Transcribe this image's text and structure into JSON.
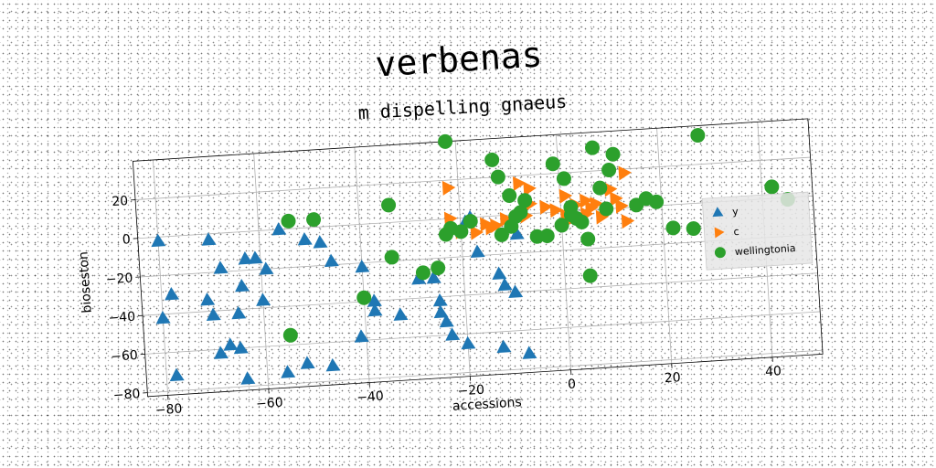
{
  "chart_data": {
    "type": "scatter",
    "title": "verbenas",
    "subtitle": "m dispelling gnaeus",
    "xlabel": "accessions",
    "ylabel": "bioseston",
    "xlim": [
      -84,
      50
    ],
    "ylim": [
      -82,
      40
    ],
    "xticks": [
      -80,
      -60,
      -40,
      -20,
      0,
      20,
      40
    ],
    "yticks": [
      20,
      0,
      -20,
      -40,
      -60,
      -80
    ],
    "grid": true,
    "legend_position": "center-right",
    "series": [
      {
        "name": "y",
        "marker": "triangle-up",
        "color": "#1f77b4",
        "points": [
          [
            -80,
            -2
          ],
          [
            -70,
            -3
          ],
          [
            -68,
            -18
          ],
          [
            -63,
            -14
          ],
          [
            -61,
            -14
          ],
          [
            -59,
            -20
          ],
          [
            -56,
            0
          ],
          [
            -51,
            -6
          ],
          [
            -48,
            -8
          ],
          [
            -46,
            -18
          ],
          [
            -78,
            -30
          ],
          [
            -80,
            -42
          ],
          [
            -71,
            -34
          ],
          [
            -70,
            -42
          ],
          [
            -65,
            -42
          ],
          [
            -64,
            -28
          ],
          [
            -60,
            -36
          ],
          [
            -40,
            -22
          ],
          [
            -38,
            -40
          ],
          [
            -38,
            -45
          ],
          [
            -33,
            -48
          ],
          [
            -29,
            -30
          ],
          [
            -26,
            -30
          ],
          [
            -25,
            -42
          ],
          [
            -25,
            -48
          ],
          [
            -24,
            -53
          ],
          [
            -23,
            -60
          ],
          [
            -20,
            -65
          ],
          [
            -19,
            -2
          ],
          [
            -18,
            0
          ],
          [
            -17,
            -18
          ],
          [
            -13,
            -30
          ],
          [
            -12,
            -36
          ],
          [
            -10,
            -40
          ],
          [
            -9,
            -10
          ],
          [
            -8,
            -72
          ],
          [
            -13,
            -68
          ],
          [
            -41,
            -58
          ],
          [
            -47,
            -72
          ],
          [
            -52,
            -70
          ],
          [
            -56,
            -74
          ],
          [
            -65,
            -60
          ],
          [
            -67,
            -58
          ],
          [
            -69,
            -62
          ],
          [
            -78,
            -72
          ],
          [
            -64,
            -76
          ]
        ]
      },
      {
        "name": "c",
        "marker": "triangle-right",
        "color": "#ff7f0e",
        "points": [
          [
            -22,
            16
          ],
          [
            -22,
            0
          ],
          [
            -20,
            -7
          ],
          [
            -17,
            -8
          ],
          [
            -15,
            -4
          ],
          [
            -13,
            -5
          ],
          [
            -11,
            -2
          ],
          [
            -9,
            -2
          ],
          [
            -8,
            16
          ],
          [
            -6,
            13
          ],
          [
            -7,
            -1
          ],
          [
            -3,
            3
          ],
          [
            -1,
            1
          ],
          [
            1,
            -2
          ],
          [
            2,
            -4
          ],
          [
            3,
            3
          ],
          [
            5,
            5
          ],
          [
            5,
            -2
          ],
          [
            6,
            1
          ],
          [
            7,
            3
          ],
          [
            8,
            -4
          ],
          [
            10,
            10
          ],
          [
            11,
            5
          ],
          [
            12,
            1
          ],
          [
            13,
            18
          ],
          [
            13,
            -7
          ],
          [
            -6,
            5
          ],
          [
            -14,
            -6
          ],
          [
            1,
            8
          ],
          [
            9,
            -1
          ]
        ]
      },
      {
        "name": "wellingtonia",
        "color": "#2ca02c",
        "marker": "circle",
        "points": [
          [
            -22,
            40
          ],
          [
            -13,
            29
          ],
          [
            -12,
            20
          ],
          [
            -10,
            10
          ],
          [
            -9,
            -1
          ],
          [
            -8,
            1
          ],
          [
            -7,
            7
          ],
          [
            -5,
            -12
          ],
          [
            -3,
            -12
          ],
          [
            -1,
            25
          ],
          [
            0,
            -7
          ],
          [
            1,
            17
          ],
          [
            2,
            2
          ],
          [
            3,
            -4
          ],
          [
            4,
            -6
          ],
          [
            5,
            -15
          ],
          [
            7,
            32
          ],
          [
            8,
            11
          ],
          [
            9,
            0
          ],
          [
            10,
            20
          ],
          [
            11,
            28
          ],
          [
            15,
            1
          ],
          [
            17,
            4
          ],
          [
            19,
            2
          ],
          [
            22,
            -12
          ],
          [
            26,
            -13
          ],
          [
            28,
            35
          ],
          [
            42,
            6
          ],
          [
            45,
            -1
          ],
          [
            5,
            -34
          ],
          [
            -34,
            9
          ],
          [
            -49,
            4
          ],
          [
            -54,
            4
          ],
          [
            -34,
            -18
          ],
          [
            -28,
            -27
          ],
          [
            -23,
            -8
          ],
          [
            -22,
            -5
          ],
          [
            -20,
            -7
          ],
          [
            -18,
            -2
          ],
          [
            -40,
            -38
          ],
          [
            -55,
            -55
          ],
          [
            -25,
            -25
          ],
          [
            -12,
            -10
          ],
          [
            -10,
            -6
          ],
          [
            2,
            -2
          ]
        ]
      }
    ]
  }
}
